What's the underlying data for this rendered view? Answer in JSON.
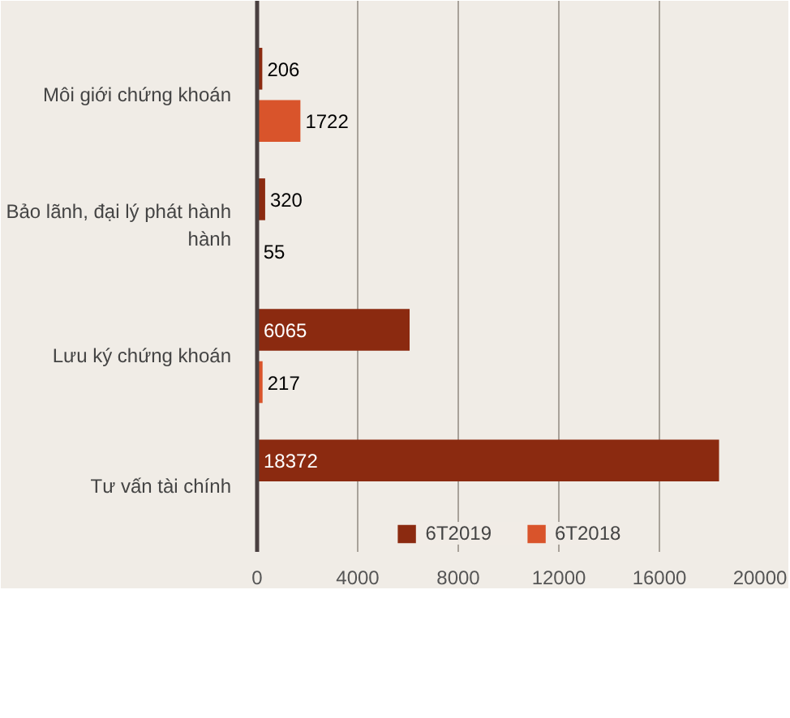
{
  "chart_data": {
    "type": "bar",
    "orientation": "horizontal",
    "categories": [
      "Môi giới chứng khoán",
      "Bảo lãnh, đại lý phát hành hành",
      "Lưu ký chứng khoán",
      "Tư vấn tài chính"
    ],
    "series": [
      {
        "name": "6T2019",
        "color": "#8b2a10",
        "values": [
          206,
          320,
          6065,
          18372
        ]
      },
      {
        "name": "6T2018",
        "color": "#d9542b",
        "values": [
          1722,
          55,
          217,
          null
        ]
      }
    ],
    "xlim": [
      0,
      20000
    ],
    "xticks": [
      0,
      4000,
      8000,
      12000,
      16000,
      20000
    ],
    "grid": "x",
    "legend": "bottom",
    "data_labels": true
  }
}
